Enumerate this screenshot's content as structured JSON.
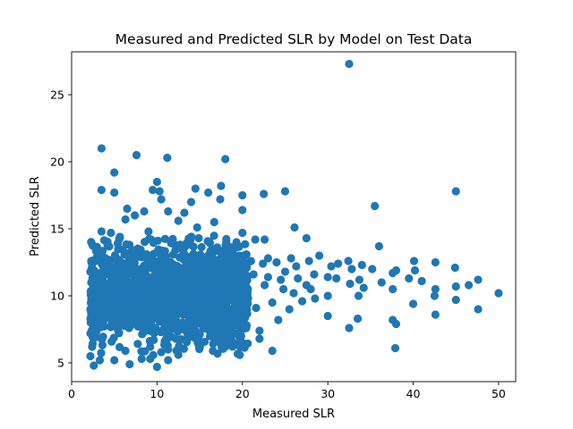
{
  "chart_data": {
    "type": "scatter",
    "title": "Measured and Predicted SLR by Model on Test Data",
    "xlabel": "Measured SLR",
    "ylabel": "Predicted SLR",
    "xlim": [
      0,
      52
    ],
    "ylim": [
      3.6,
      28.2
    ],
    "xticks": [
      0,
      10,
      20,
      30,
      40,
      50
    ],
    "yticks": [
      5,
      10,
      15,
      20,
      25
    ],
    "grid": false,
    "marker_color": "#1f77b4",
    "series": [
      {
        "points": [
          [
            32.5,
            27.3
          ],
          [
            3.5,
            21.0
          ],
          [
            7.6,
            20.5
          ],
          [
            11.2,
            20.3
          ],
          [
            18.0,
            20.2
          ],
          [
            5.0,
            19.2
          ],
          [
            10.0,
            18.5
          ],
          [
            17.5,
            18.2
          ],
          [
            14.5,
            18.0
          ],
          [
            3.5,
            17.9
          ],
          [
            5.0,
            17.7
          ],
          [
            9.5,
            17.9
          ],
          [
            10.3,
            17.8
          ],
          [
            16.0,
            17.7
          ],
          [
            20.0,
            17.5
          ],
          [
            22.5,
            17.6
          ],
          [
            25.0,
            17.8
          ],
          [
            45.0,
            17.8
          ],
          [
            10.5,
            17.2
          ],
          [
            14.0,
            17.0
          ],
          [
            17.4,
            17.2
          ],
          [
            35.5,
            16.7
          ],
          [
            6.5,
            16.5
          ],
          [
            11.3,
            16.3
          ],
          [
            13.2,
            16.2
          ],
          [
            8.5,
            16.3
          ],
          [
            20.0,
            16.4
          ],
          [
            7.4,
            16.0
          ],
          [
            6.3,
            15.7
          ],
          [
            16.7,
            15.5
          ],
          [
            12.5,
            15.6
          ],
          [
            14.7,
            15.1
          ],
          [
            26.1,
            15.1
          ],
          [
            3.5,
            14.8
          ],
          [
            4.6,
            14.7
          ],
          [
            9.0,
            14.8
          ],
          [
            21.5,
            14.2
          ],
          [
            20.0,
            14.7
          ],
          [
            22.6,
            14.2
          ],
          [
            27.5,
            14.3
          ],
          [
            36.0,
            13.7
          ],
          [
            5.4,
            13.9
          ],
          [
            19.3,
            14.0
          ],
          [
            2.3,
            12.6
          ],
          [
            29.0,
            13.0
          ],
          [
            30.4,
            12.2
          ],
          [
            31.2,
            12.4
          ],
          [
            32.4,
            12.6
          ],
          [
            32.8,
            12.0
          ],
          [
            34.0,
            12.3
          ],
          [
            35.2,
            12.0
          ],
          [
            37.6,
            11.7
          ],
          [
            38.0,
            11.9
          ],
          [
            40.1,
            12.6
          ],
          [
            40.2,
            11.9
          ],
          [
            42.6,
            12.5
          ],
          [
            44.9,
            12.1
          ],
          [
            47.6,
            11.2
          ],
          [
            36.3,
            11.0
          ],
          [
            39.5,
            11.3
          ],
          [
            41.0,
            11.1
          ],
          [
            33.7,
            11.2
          ],
          [
            31.0,
            11.3
          ],
          [
            30.0,
            11.4
          ],
          [
            32.6,
            10.9
          ],
          [
            34.2,
            10.6
          ],
          [
            37.6,
            10.5
          ],
          [
            42.6,
            10.5
          ],
          [
            45.0,
            10.7
          ],
          [
            46.5,
            10.8
          ],
          [
            50.0,
            10.2
          ],
          [
            42.5,
            10.0
          ],
          [
            45.0,
            9.7
          ],
          [
            30.0,
            10.0
          ],
          [
            33.6,
            10.0
          ],
          [
            40.0,
            9.4
          ],
          [
            47.6,
            9.0
          ],
          [
            30.0,
            8.5
          ],
          [
            33.5,
            8.3
          ],
          [
            37.6,
            8.2
          ],
          [
            38.0,
            7.9
          ],
          [
            42.6,
            8.6
          ],
          [
            32.5,
            7.6
          ],
          [
            37.9,
            6.1
          ],
          [
            23.5,
            5.9
          ],
          [
            20.0,
            6.5
          ],
          [
            18.0,
            6.2
          ],
          [
            18.0,
            6.8
          ],
          [
            22.0,
            6.8
          ],
          [
            16.2,
            7.0
          ],
          [
            17.5,
            7.0
          ],
          [
            14.3,
            6.9
          ],
          [
            12.2,
            6.8
          ],
          [
            12.5,
            5.6
          ],
          [
            10.0,
            4.7
          ],
          [
            11.3,
            5.2
          ],
          [
            11.3,
            6.0
          ],
          [
            10.5,
            5.8
          ],
          [
            9.2,
            5.3
          ],
          [
            9.2,
            6.2
          ],
          [
            8.2,
            5.3
          ],
          [
            6.8,
            4.9
          ],
          [
            6.3,
            5.9
          ],
          [
            5.0,
            5.2
          ],
          [
            3.3,
            5.2
          ],
          [
            2.6,
            4.8
          ],
          [
            2.4,
            6.2
          ],
          [
            2.2,
            5.5
          ],
          [
            2.2,
            7.2
          ],
          [
            2.3,
            8.0
          ],
          [
            2.2,
            9.0
          ],
          [
            2.3,
            10.0
          ],
          [
            2.3,
            11.0
          ],
          [
            2.2,
            11.8
          ],
          [
            22.0,
            7.4
          ],
          [
            20.5,
            7.8
          ],
          [
            24.2,
            8.2
          ],
          [
            25.5,
            9.0
          ],
          [
            27.0,
            9.6
          ],
          [
            28.5,
            9.8
          ],
          [
            28.0,
            10.5
          ],
          [
            26.5,
            11.3
          ],
          [
            25.0,
            11.8
          ],
          [
            24.0,
            12.5
          ],
          [
            23.0,
            12.8
          ],
          [
            22.4,
            12.4
          ],
          [
            26.3,
            12.2
          ],
          [
            27.8,
            12.6
          ],
          [
            24.8,
            10.5
          ],
          [
            23.5,
            9.5
          ],
          [
            22.6,
            10.8
          ],
          [
            21.6,
            9.1
          ],
          [
            20.2,
            9.0
          ],
          [
            20.4,
            10.1
          ],
          [
            21.3,
            11.6
          ],
          [
            20.0,
            12.1
          ],
          [
            21.0,
            12.6
          ],
          [
            20.1,
            13.0
          ],
          [
            24.5,
            11.2
          ],
          [
            26.0,
            10.2
          ],
          [
            27.5,
            10.8
          ],
          [
            28.4,
            11.6
          ],
          [
            25.7,
            12.8
          ],
          [
            23.0,
            11.4
          ]
        ]
      }
    ]
  }
}
